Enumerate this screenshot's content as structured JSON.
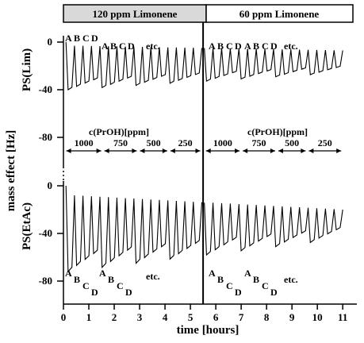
{
  "chart_data": {
    "type": "line",
    "header": {
      "left_label": "120 ppm Limonene",
      "right_label": "60 ppm Limonene",
      "left_fill": "#d9d9d9",
      "right_fill": "#ffffff"
    },
    "xlabel": "time [hours]",
    "ylabel": "mass effect [Hz]",
    "xlim": [
      0,
      11.4
    ],
    "xticks": [
      "0",
      "1",
      "2",
      "3",
      "4",
      "5",
      "6",
      "7",
      "8",
      "9",
      "10",
      "11"
    ],
    "divider_x": 5.5,
    "panels": [
      {
        "series_name": "PS(Lim)",
        "ylim": [
          -44,
          4
        ],
        "yticks": [
          "0",
          "-40"
        ],
        "row_labels": {
          "left": [
            "A",
            "B",
            "C",
            "D"
          ],
          "left_repeat": [
            "A",
            "B",
            "C",
            "D"
          ],
          "right": [
            "A",
            "B",
            "C",
            "D"
          ],
          "right_repeat": [
            "A",
            "B",
            "C",
            "D"
          ],
          "etc_left": "etc.",
          "etc_right": "etc."
        },
        "baseline_start": -3,
        "baseline_end": -7,
        "minima_start": -40,
        "minima_end": -26
      },
      {
        "series_name": "PS(EtAc)",
        "ylim": [
          -85,
          5
        ],
        "yticks": [
          "0",
          "-40",
          "-80"
        ],
        "row_labels": {
          "left": [
            "A",
            "B",
            "C",
            "D"
          ],
          "left_repeat": [
            "A",
            "B",
            "C",
            "D"
          ],
          "right": [
            "A",
            "B",
            "C",
            "D"
          ],
          "right_repeat": [
            "A",
            "B",
            "C",
            "D"
          ],
          "etc_left": "etc.",
          "etc_right": "etc."
        },
        "baseline_start": -8,
        "baseline_end": -20,
        "minima_start": -72,
        "minima_end": -45
      }
    ],
    "shared_ytick_middle": "-80",
    "concentration_label": "c(PrOH)[ppm]",
    "concentration_segments": [
      {
        "label": "1000",
        "x0": 0.05,
        "x1": 1.55
      },
      {
        "label": "750",
        "x0": 1.55,
        "x1": 2.95
      },
      {
        "label": "500",
        "x0": 2.95,
        "x1": 4.15
      },
      {
        "label": "250",
        "x0": 4.15,
        "x1": 5.45
      },
      {
        "label": "1000",
        "x0": 5.55,
        "x1": 7.0
      },
      {
        "label": "750",
        "x0": 7.0,
        "x1": 8.4
      },
      {
        "label": "500",
        "x0": 8.4,
        "x1": 9.6
      },
      {
        "label": "250",
        "x0": 9.6,
        "x1": 11.0
      }
    ],
    "pulses_per_phase": 16,
    "colors": {
      "line": "#000000",
      "axis": "#000000"
    }
  }
}
